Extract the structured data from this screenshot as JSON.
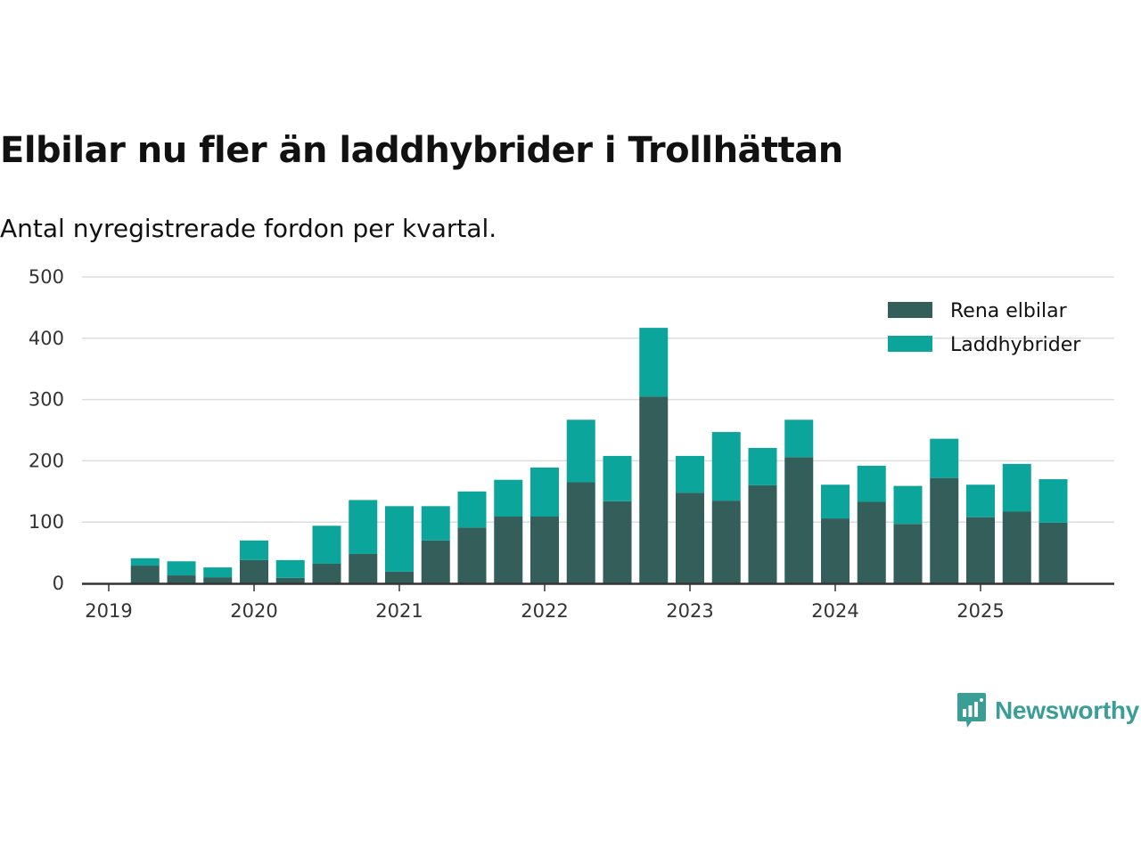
{
  "title": "Elbilar nu fler än laddhybrider i Trollhättan",
  "subtitle": "Antal nyregistrerade fordon per kvartal.",
  "brand": {
    "name": "Newsworthy",
    "icon": "newsworthy-logo-icon",
    "color": "#3a9e97"
  },
  "colors": {
    "rena_elbilar": "#335e5a",
    "laddhybrider": "#0ca59b",
    "grid": "#dddddd",
    "axis": "#333333"
  },
  "chart_data": {
    "type": "bar",
    "stacked": true,
    "title": "Elbilar nu fler än laddhybrider i Trollhättan",
    "subtitle": "Antal nyregistrerade fordon per kvartal.",
    "xlabel": "",
    "ylabel": "",
    "ylim": [
      0,
      500
    ],
    "yticks": [
      0,
      100,
      200,
      300,
      400,
      500
    ],
    "xticks": [
      "2019",
      "2020",
      "2021",
      "2022",
      "2023",
      "2024",
      "2025"
    ],
    "grid": true,
    "legend_position": "top-right",
    "categories": [
      "2019 Q2",
      "2019 Q3",
      "2019 Q4",
      "2020 Q1",
      "2020 Q2",
      "2020 Q3",
      "2020 Q4",
      "2021 Q1",
      "2021 Q2",
      "2021 Q3",
      "2021 Q4",
      "2022 Q1",
      "2022 Q2",
      "2022 Q3",
      "2022 Q4",
      "2023 Q1",
      "2023 Q2",
      "2023 Q3",
      "2023 Q4",
      "2024 Q1",
      "2024 Q2",
      "2024 Q3",
      "2024 Q4",
      "2025 Q1",
      "2025 Q2",
      "2025 Q3"
    ],
    "series": [
      {
        "name": "Rena elbilar",
        "color": "#335e5a",
        "values": [
          29,
          13,
          10,
          38,
          9,
          32,
          48,
          19,
          70,
          91,
          109,
          109,
          165,
          134,
          305,
          148,
          135,
          160,
          206,
          106,
          133,
          97,
          172,
          108,
          117,
          99
        ]
      },
      {
        "name": "Laddhybrider",
        "color": "#0ca59b",
        "values": [
          12,
          23,
          16,
          32,
          29,
          62,
          88,
          107,
          56,
          59,
          60,
          80,
          102,
          74,
          112,
          60,
          112,
          61,
          61,
          55,
          59,
          62,
          64,
          53,
          78,
          71
        ]
      }
    ]
  }
}
